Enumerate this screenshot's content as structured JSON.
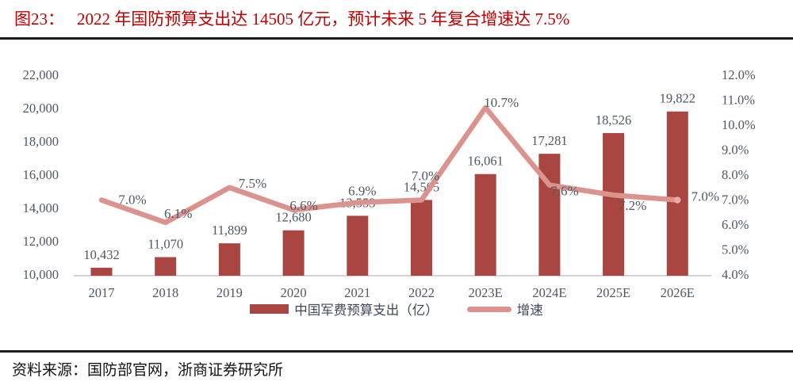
{
  "header": {
    "tag": "图23：",
    "title": "2022 年国防预算支出达 14505 亿元，预计未来 5 年复合增速达 7.5%"
  },
  "source": {
    "label": "资料来源：国防部官网，浙商证券研究所"
  },
  "legend": {
    "bars": "中国军费预算支出（亿）",
    "line": "增速"
  },
  "colors": {
    "bar": "#a94642",
    "line": "#dc938d",
    "line_end_dot": "#e7aca6",
    "title_red": "#c00000",
    "chart_text": "#4e5866",
    "axis_line": "#c6c6c6",
    "rule_black": "#1c1c1c"
  },
  "chart_data": {
    "type": "bar+line combo",
    "title": "2022 年国防预算支出达 14505 亿元，预计未来 5 年复合增速达 7.5%",
    "categories": [
      "2017",
      "2018",
      "2019",
      "2020",
      "2021",
      "2022",
      "2023E",
      "2024E",
      "2025E",
      "2026E"
    ],
    "series": [
      {
        "name": "中国军费预算支出（亿）",
        "type": "bar",
        "axis": "left",
        "values": [
          10432,
          11070,
          11899,
          12680,
          13553,
          14505,
          16061,
          17281,
          18526,
          19822
        ],
        "labels": [
          "10,432",
          "11,070",
          "11,899",
          "12,680",
          "13,553",
          "14,505",
          "16,061",
          "17,281",
          "18,526",
          "19,822"
        ]
      },
      {
        "name": "增速",
        "type": "line",
        "axis": "right",
        "values": [
          7.0,
          6.1,
          7.5,
          6.6,
          6.9,
          7.0,
          10.7,
          7.6,
          7.2,
          7.0
        ],
        "labels": [
          "7.0%",
          "6.1%",
          "7.5%",
          "6.6%",
          "6.9%",
          "7.0%",
          "10.7%",
          "7.6%",
          "7.2%",
          "7.0%"
        ]
      }
    ],
    "left_axis": {
      "min": 10000,
      "max": 22000,
      "ticks": [
        "22,000",
        "20,000",
        "18,000",
        "16,000",
        "14,000",
        "12,000",
        "10,000"
      ]
    },
    "right_axis": {
      "min": 4.0,
      "max": 12.0,
      "ticks": [
        "12.0%",
        "11.0%",
        "10.0%",
        "9.0%",
        "8.0%",
        "7.0%",
        "6.0%",
        "5.0%",
        "4.0%"
      ]
    },
    "grid": false,
    "legend_position": "bottom"
  }
}
